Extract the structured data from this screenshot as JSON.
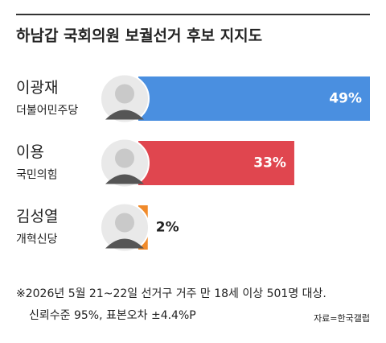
{
  "chart_data": {
    "type": "bar",
    "title": "하남갑 국회의원 보궐선거 후보 지지도",
    "categories": [
      "이광재",
      "이용",
      "김성열"
    ],
    "parties": [
      "더불어민주당",
      "국민의힘",
      "개혁신당"
    ],
    "values": [
      49,
      33,
      2
    ],
    "value_labels": [
      "49%",
      "33%",
      "2%"
    ],
    "colors": [
      "#4a8fe0",
      "#e0464f",
      "#f08a2a"
    ],
    "notes": [
      "※2026년 5월 21~22일 선거구 거주 만 18세 이상 501명 대상.",
      "신뢰수준 95%, 표본오차 ±4.4%P"
    ],
    "source": "자료=한국갤럽"
  }
}
